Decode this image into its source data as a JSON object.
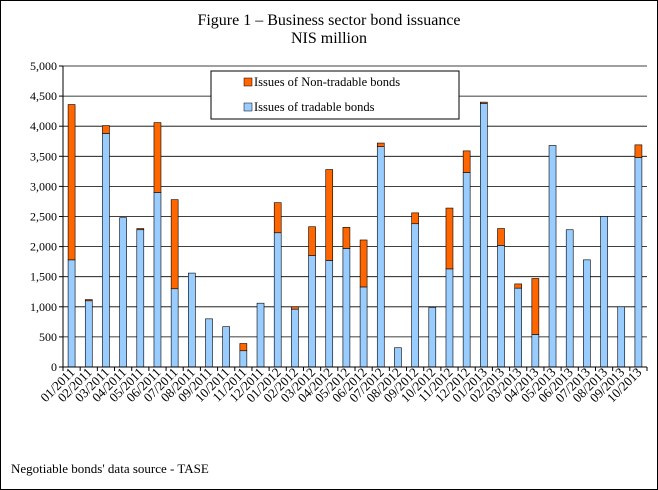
{
  "chart_data": {
    "type": "bar",
    "stacked": true,
    "title": "Figure 1 – Business sector bond issuance",
    "subtitle": "NIS million",
    "footnote": "Negotiable bonds' data source - TASE",
    "ylim": [
      0,
      5000
    ],
    "yticks": [
      "0",
      "500",
      "1,000",
      "1,500",
      "2,000",
      "2,500",
      "3,000",
      "3,500",
      "4,000",
      "4,500",
      "5,000"
    ],
    "ytick_values": [
      0,
      500,
      1000,
      1500,
      2000,
      2500,
      3000,
      3500,
      4000,
      4500,
      5000
    ],
    "grid": true,
    "legend_position": "top-center",
    "categories": [
      "01/2011",
      "02/2011",
      "03/2011",
      "04/2011",
      "05/2011",
      "06/2011",
      "07/2011",
      "08/2011",
      "09/2011",
      "10/2011",
      "11/2011",
      "12/2011",
      "01/2012",
      "02/2012",
      "03/2012",
      "04/2012",
      "05/2012",
      "06/2012",
      "07/2012",
      "08/2012",
      "09/2012",
      "10/2012",
      "11/2012",
      "12/2012",
      "01/2013",
      "02/2013",
      "03/2013",
      "04/2013",
      "05/2013",
      "06/2013",
      "07/2013",
      "08/2013",
      "09/2013",
      "10/2013"
    ],
    "series": [
      {
        "name": "Issues of tradable bonds",
        "color": "#99ccff",
        "values": [
          1780,
          1100,
          3880,
          2480,
          2280,
          2900,
          1300,
          1560,
          800,
          670,
          270,
          1060,
          2230,
          960,
          1850,
          1770,
          1970,
          1330,
          3660,
          320,
          2380,
          990,
          1630,
          3230,
          4380,
          2020,
          1310,
          540,
          3680,
          2280,
          1780,
          2500,
          1000,
          3480
        ]
      },
      {
        "name": "Issues of Non-tradable bonds",
        "color": "#ff6600",
        "values": [
          2580,
          20,
          130,
          0,
          20,
          1160,
          1480,
          0,
          0,
          0,
          120,
          0,
          500,
          40,
          480,
          1510,
          350,
          780,
          60,
          0,
          180,
          0,
          1010,
          360,
          20,
          280,
          70,
          930,
          0,
          0,
          0,
          0,
          0,
          210
        ]
      }
    ]
  }
}
